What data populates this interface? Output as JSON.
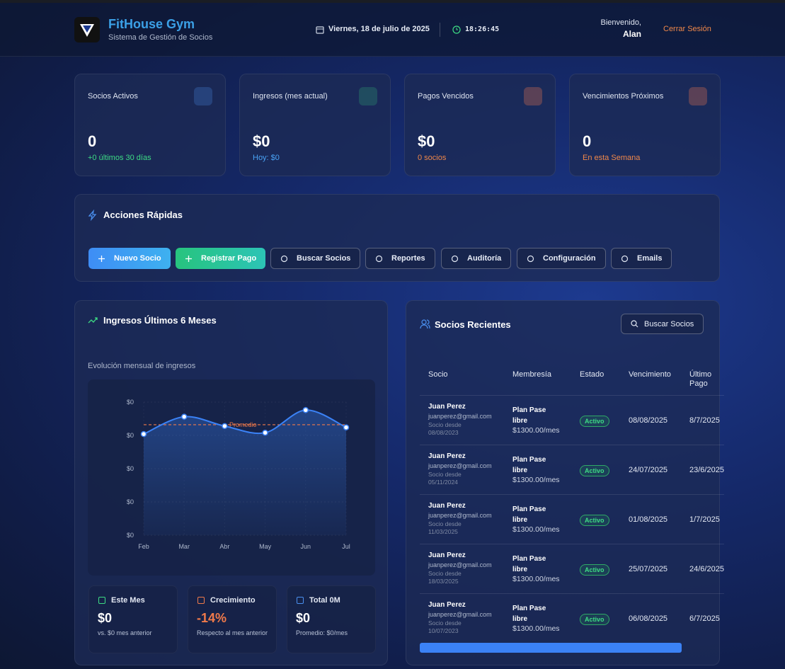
{
  "header": {
    "brand": "FitHouse Gym",
    "subtitle": "Sistema de Gestión de Socios",
    "date": "Viernes, 18 de julio de 2025",
    "time": "18:26:45",
    "welcome": "Bienvenido,",
    "user": "Alan",
    "logout": "Cerrar Sesión"
  },
  "stats": [
    {
      "label": "Socios Activos",
      "value": "0",
      "note": "+0 últimos 30 días"
    },
    {
      "label": "Ingresos (mes actual)",
      "value": "$0",
      "note": "Hoy: $0"
    },
    {
      "label": "Pagos Vencidos",
      "value": "$0",
      "note": "0 socios"
    },
    {
      "label": "Vencimientos Próximos",
      "value": "0",
      "note": "En esta Semana"
    }
  ],
  "quick_actions": {
    "title": "Acciones Rápidas",
    "buttons": [
      "Nuevo Socio",
      "Registrar Pago",
      "Buscar Socios",
      "Reportes",
      "Auditoría",
      "Configuración",
      "Emails"
    ]
  },
  "revenue": {
    "title": "Ingresos Últimos 6 Meses",
    "subtitle": "Evolución mensual de ingresos",
    "chart_data": {
      "type": "line",
      "categories": [
        "Feb",
        "Mar",
        "Abr",
        "May",
        "Jun",
        "Jul"
      ],
      "values": [
        0.76,
        0.89,
        0.82,
        0.77,
        0.94,
        0.81
      ],
      "color": "#3b82f6",
      "ylim": [
        0,
        1
      ],
      "yticks": [
        {
          "value": 0,
          "label": "$0"
        },
        {
          "value": 0.25,
          "label": "$0"
        },
        {
          "value": 0.5,
          "label": "$0"
        },
        {
          "value": 0.75,
          "label": "$0"
        },
        {
          "value": 1,
          "label": "$0"
        }
      ],
      "grid": true,
      "average": 0.83,
      "average_label": "Promedio",
      "average_color": "#f07a4a"
    },
    "summary": [
      {
        "label": "Este Mes",
        "value": "$0",
        "note": "vs. $0 mes anterior"
      },
      {
        "label": "Crecimiento",
        "value": "-14%",
        "note": "Respecto al mes anterior"
      },
      {
        "label": "Total 0M",
        "value": "$0",
        "note": "Promedio: $0/mes"
      }
    ]
  },
  "members": {
    "title": "Socios Recientes",
    "search": "Buscar Socios",
    "columns": [
      "Socio",
      "Membresía",
      "Estado",
      "Vencimiento",
      "Último Pago"
    ],
    "rows": [
      {
        "name": "Juan Perez",
        "email": "juanperez@gmail.com",
        "since_label": "Socio desde",
        "since": "08/08/2023",
        "plan": "Plan Pase libre",
        "price": "$1300.00/mes",
        "status": "Activo",
        "due": "08/08/2025",
        "last_payment": "8/7/2025"
      },
      {
        "name": "Juan Perez",
        "email": "juanperez@gmail.com",
        "since_label": "Socio desde",
        "since": "05/11/2024",
        "plan": "Plan Pase libre",
        "price": "$1300.00/mes",
        "status": "Activo",
        "due": "24/07/2025",
        "last_payment": "23/6/2025"
      },
      {
        "name": "Juan Perez",
        "email": "juanperez@gmail.com",
        "since_label": "Socio desde",
        "since": "11/03/2025",
        "plan": "Plan Pase libre",
        "price": "$1300.00/mes",
        "status": "Activo",
        "due": "01/08/2025",
        "last_payment": "1/7/2025"
      },
      {
        "name": "Juan Perez",
        "email": "juanperez@gmail.com",
        "since_label": "Socio desde",
        "since": "18/03/2025",
        "plan": "Plan Pase libre",
        "price": "$1300.00/mes",
        "status": "Activo",
        "due": "25/07/2025",
        "last_payment": "24/6/2025"
      },
      {
        "name": "Juan Perez",
        "email": "juanperez@gmail.com",
        "since_label": "Socio desde",
        "since": "10/07/2023",
        "plan": "Plan Pase libre",
        "price": "$1300.00/mes",
        "status": "Activo",
        "due": "06/08/2025",
        "last_payment": "6/7/2025"
      }
    ]
  }
}
